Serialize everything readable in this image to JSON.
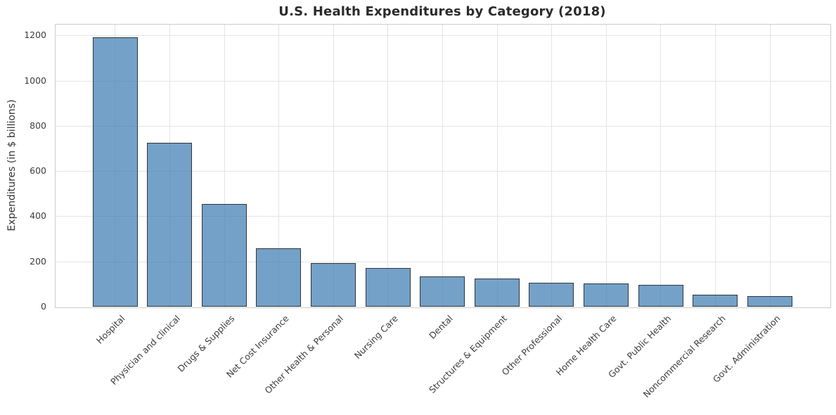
{
  "chart_data": {
    "type": "bar",
    "title": "U.S. Health Expenditures by Category (2018)",
    "xlabel": "",
    "ylabel": "Expenditures (in $ billions)",
    "categories": [
      "Hospital",
      "Physician and clinical",
      "Drugs & Supplies",
      "Net Cost Insurance",
      "Other Health & Personal",
      "Nursing Care",
      "Dental",
      "Structures & Equipment",
      "Other Professional",
      "Home Health Care",
      "Govt. Public Health",
      "Noncommercial Research",
      "Govt. Administration"
    ],
    "values": [
      1192,
      726,
      455,
      258,
      192,
      170,
      135,
      123,
      105,
      102,
      95,
      54,
      48
    ],
    "yticks": [
      0,
      200,
      400,
      600,
      800,
      1000,
      1200
    ],
    "ylim": [
      0,
      1251
    ],
    "grid": true,
    "legend_position": "none",
    "bar_color": "#4682B4",
    "bar_alpha": 0.75,
    "bar_edge_color": "#30363c",
    "gridline_color": "#e4e4e4",
    "spine_color": "#cccccc",
    "title_color": "#2b2b2b",
    "tick_label_color": "#3d3d3d"
  }
}
